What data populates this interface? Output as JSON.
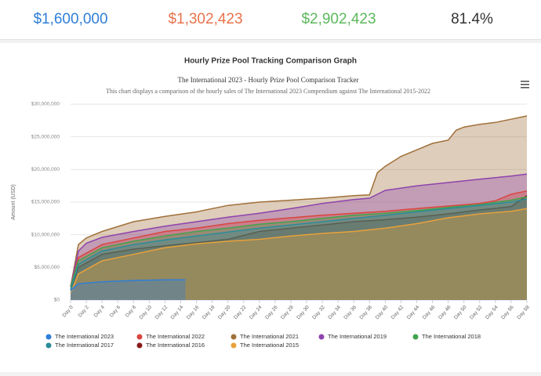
{
  "stats": [
    {
      "value": "$1,600,000",
      "color": "#2f7ed8"
    },
    {
      "value": "$1,302,423",
      "color": "#e8734a"
    },
    {
      "value": "$2,902,423",
      "color": "#5cb85c"
    },
    {
      "value": "81.4%",
      "color": "#333333"
    }
  ],
  "panel_title": "Hourly Prize Pool Tracking Comparison Graph",
  "chart_data": {
    "type": "area",
    "title": "The International 2023 - Hourly Prize Pool Comparison Tracker",
    "subtitle": "This chart displays a comparison of the hourly sales of The International 2023 Compendium against The International 2015-2022",
    "y_label": "Amount (USD)",
    "xlim": [
      0,
      58
    ],
    "xticks": [
      {
        "value": 0,
        "label": "Day 0"
      },
      {
        "value": 2,
        "label": "Day 2"
      },
      {
        "value": 4,
        "label": "Day 4"
      },
      {
        "value": 6,
        "label": "Day 6"
      },
      {
        "value": 8,
        "label": "Day 8"
      },
      {
        "value": 10,
        "label": "Day 10"
      },
      {
        "value": 12,
        "label": "Day 12"
      },
      {
        "value": 14,
        "label": "Day 14"
      },
      {
        "value": 16,
        "label": "Day 16"
      },
      {
        "value": 18,
        "label": "Day 18"
      },
      {
        "value": 20,
        "label": "Day 20"
      },
      {
        "value": 22,
        "label": "Day 22"
      },
      {
        "value": 24,
        "label": "Day 24"
      },
      {
        "value": 26,
        "label": "Day 26"
      },
      {
        "value": 28,
        "label": "Day 28"
      },
      {
        "value": 30,
        "label": "Day 30"
      },
      {
        "value": 32,
        "label": "Day 32"
      },
      {
        "value": 34,
        "label": "Day 34"
      },
      {
        "value": 36,
        "label": "Day 36"
      },
      {
        "value": 38,
        "label": "Day 38"
      },
      {
        "value": 40,
        "label": "Day 40"
      },
      {
        "value": 42,
        "label": "Day 42"
      },
      {
        "value": 44,
        "label": "Day 44"
      },
      {
        "value": 46,
        "label": "Day 46"
      },
      {
        "value": 48,
        "label": "Day 48"
      },
      {
        "value": 50,
        "label": "Day 50"
      },
      {
        "value": 52,
        "label": "Day 52"
      },
      {
        "value": 54,
        "label": "Day 54"
      },
      {
        "value": 56,
        "label": "Day 56"
      },
      {
        "value": 58,
        "label": "Day 58"
      }
    ],
    "ylim": [
      0,
      30000000
    ],
    "yticks": [
      {
        "value": 0,
        "label": "$0"
      },
      {
        "value": 5000000,
        "label": "$5,000,000"
      },
      {
        "value": 10000000,
        "label": "$10,000,000"
      },
      {
        "value": 15000000,
        "label": "$15,000,000"
      },
      {
        "value": 20000000,
        "label": "$20,000,000"
      },
      {
        "value": 25000000,
        "label": "$25,000,000"
      },
      {
        "value": 30000000,
        "label": "$30,000,000"
      }
    ],
    "grid": true,
    "legend": "bottom",
    "series": [
      {
        "name": "The International 2023",
        "color": "#2f7ed8",
        "x": [
          0,
          1,
          4,
          8,
          12,
          14.6
        ],
        "values": [
          1500000,
          2500000,
          2800000,
          3000000,
          3100000,
          3100000
        ]
      },
      {
        "name": "The International 2022",
        "color": "#d9453f",
        "x": [
          0,
          1,
          4,
          8,
          12,
          16,
          20,
          24,
          28,
          32,
          36,
          40,
          44,
          48,
          52,
          54,
          56,
          58
        ],
        "values": [
          2000000,
          6500000,
          8500000,
          9500000,
          10500000,
          11000000,
          11700000,
          12200000,
          12600000,
          13000000,
          13300000,
          13600000,
          14000000,
          14400000,
          14800000,
          15200000,
          16200000,
          16700000
        ]
      },
      {
        "name": "The International 2021",
        "color": "#a0703a",
        "x": [
          0,
          1,
          2,
          4,
          8,
          12,
          16,
          20,
          24,
          28,
          32,
          36,
          38,
          39,
          40,
          42,
          44,
          46,
          48,
          49,
          50,
          52,
          54,
          56,
          58
        ],
        "values": [
          2000000,
          8500000,
          9500000,
          10500000,
          12000000,
          12800000,
          13500000,
          14500000,
          15000000,
          15300000,
          15600000,
          16000000,
          16100000,
          19500000,
          20500000,
          22000000,
          23000000,
          24000000,
          24500000,
          26000000,
          26500000,
          26900000,
          27200000,
          27700000,
          28200000
        ]
      },
      {
        "name": "The International 2019",
        "color": "#8e44ad",
        "x": [
          0,
          1,
          2,
          4,
          8,
          12,
          16,
          20,
          24,
          28,
          32,
          36,
          38,
          40,
          44,
          48,
          52,
          56,
          58
        ],
        "values": [
          2000000,
          7500000,
          8700000,
          9600000,
          10500000,
          11300000,
          12000000,
          12700000,
          13300000,
          14000000,
          14800000,
          15400000,
          15600000,
          16800000,
          17500000,
          18000000,
          18500000,
          19000000,
          19300000
        ]
      },
      {
        "name": "The International 2018",
        "color": "#3fa34d",
        "x": [
          0,
          1,
          4,
          8,
          12,
          16,
          20,
          24,
          28,
          32,
          36,
          40,
          44,
          48,
          52,
          56,
          58
        ],
        "values": [
          2000000,
          6000000,
          8000000,
          9000000,
          9800000,
          10500000,
          11000000,
          11600000,
          12000000,
          12500000,
          13000000,
          13300000,
          13700000,
          14200000,
          14600000,
          15300000,
          15800000
        ]
      },
      {
        "name": "The International 2017",
        "color": "#2a8c9a",
        "x": [
          0,
          1,
          4,
          8,
          12,
          16,
          20,
          24,
          28,
          32,
          36,
          40,
          44,
          48,
          52,
          56,
          58
        ],
        "values": [
          1500000,
          5500000,
          7500000,
          8500000,
          9200000,
          9800000,
          10400000,
          11000000,
          11500000,
          12000000,
          12500000,
          13000000,
          13500000,
          14000000,
          14500000,
          15000000,
          15500000
        ]
      },
      {
        "name": "The International 2016",
        "color": "#8b1a1a",
        "x": [
          0,
          1,
          4,
          8,
          12,
          16,
          20,
          24,
          28,
          32,
          36,
          40,
          44,
          48,
          52,
          56,
          58
        ],
        "values": [
          1500000,
          5000000,
          7000000,
          7800000,
          8300000,
          8800000,
          9300000,
          10500000,
          11000000,
          11500000,
          12000000,
          12300000,
          12700000,
          13200000,
          13800000,
          14300000,
          16000000
        ]
      },
      {
        "name": "The International 2015",
        "color": "#e8a23a",
        "x": [
          0,
          1,
          4,
          8,
          12,
          16,
          20,
          24,
          28,
          32,
          36,
          40,
          44,
          48,
          52,
          56,
          58
        ],
        "values": [
          1000000,
          4000000,
          6000000,
          7000000,
          8000000,
          8600000,
          9000000,
          9300000,
          9800000,
          10200000,
          10500000,
          11000000,
          11700000,
          12600000,
          13200000,
          13600000,
          14000000
        ]
      }
    ]
  }
}
